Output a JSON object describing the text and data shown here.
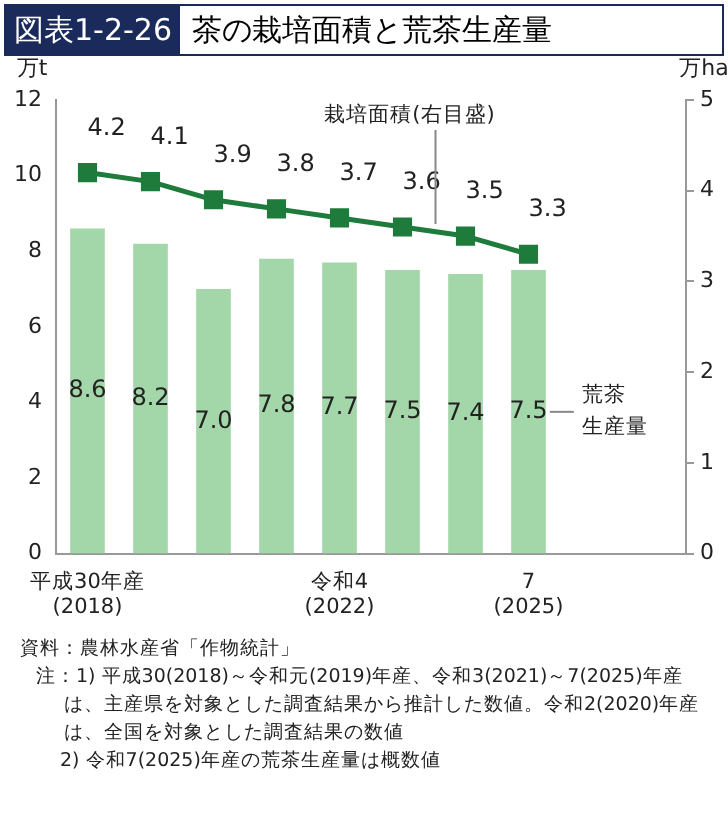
{
  "chart_data": {
    "type": "bar",
    "title": "茶の栽培面積と荒茶生産量",
    "ylabel": "万t",
    "y2label": "万ha",
    "categories": [
      "平成30年産\n(2018)",
      null,
      null,
      null,
      "令和4\n(2022)",
      null,
      null,
      "7\n(2025)",
      null,
      null
    ],
    "series": [
      {
        "name": "荒茶生産量",
        "color": "#a3d6a8",
        "values": [
          8.6,
          8.2,
          7.0,
          7.8,
          7.7,
          7.5,
          7.4,
          7.5,
          null,
          null
        ],
        "value_labels": [
          "8.6",
          "8.2",
          "7.0",
          "7.8",
          "7.7",
          "7.5",
          "7.4",
          "7.5",
          null,
          null
        ]
      },
      {
        "name": "栽培面積(右目盛)",
        "type": "line",
        "axis": "y2",
        "color": "#1e7b3c",
        "marker": "square",
        "values": [
          4.2,
          4.1,
          3.9,
          3.8,
          3.7,
          3.6,
          3.5,
          3.3,
          null,
          null
        ],
        "value_labels": [
          "4.2",
          "4.1",
          "3.9",
          "3.8",
          "3.7",
          "3.6",
          "3.5",
          "3.3",
          null,
          null
        ]
      }
    ],
    "ylim": [
      0,
      12
    ],
    "yticks": [
      0,
      2,
      4,
      6,
      8,
      10,
      12
    ],
    "y2lim": [
      0,
      5
    ],
    "y2ticks": [
      0,
      1,
      2,
      3,
      4,
      5
    ],
    "grid": false,
    "legend": false,
    "annotations": [
      "図表1-2-26",
      "資料：農林水産省「作物統計」",
      "注：1) 平成30(2018)～令和元(2019)年産、令和3(2021)～7(2025)年産は、主産県を対象とした調査結果から推計した数値。令和2(2020)年産は、全国を対象とした調査結果の数値",
      "2) 令和7(2025)年産の荒茶生産量は概数値"
    ]
  }
}
